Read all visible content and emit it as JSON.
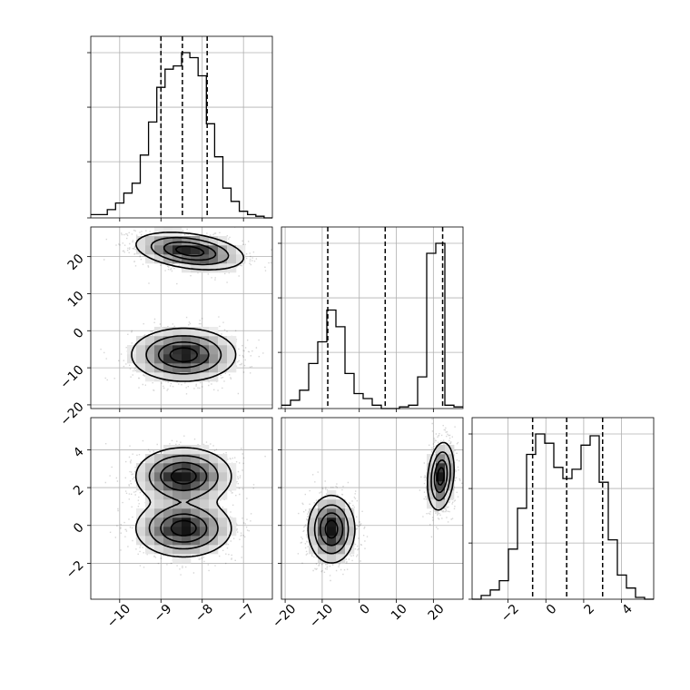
{
  "chart_data": {
    "type": "corner",
    "grid": true,
    "dimensions": [
      {
        "range": [
          -10.7,
          -6.3
        ],
        "ticks": [
          -10,
          -9,
          -8,
          -7
        ],
        "tick_labels": [
          "−10",
          "−9",
          "−8",
          "−7"
        ],
        "quantiles": [
          -9.0,
          -8.48,
          -7.88
        ],
        "hist": {
          "edges": [
            -10.7,
            -10.5,
            -10.3,
            -10.1,
            -9.9,
            -9.7,
            -9.5,
            -9.3,
            -9.1,
            -8.9,
            -8.7,
            -8.5,
            -8.3,
            -8.1,
            -7.9,
            -7.7,
            -7.5,
            -7.3,
            -7.1,
            -6.9,
            -6.7,
            -6.5,
            -6.3
          ],
          "counts": [
            0.02,
            0.02,
            0.05,
            0.09,
            0.15,
            0.21,
            0.38,
            0.58,
            0.79,
            0.9,
            0.92,
            1.0,
            0.97,
            0.86,
            0.57,
            0.37,
            0.18,
            0.1,
            0.04,
            0.02,
            0.01,
            0.0
          ]
        }
      },
      {
        "range": [
          -21,
          28
        ],
        "ticks": [
          -20,
          -10,
          0,
          10,
          20
        ],
        "tick_labels": [
          "−20",
          "−10",
          "0",
          "10",
          "20"
        ],
        "quantiles": [
          -8.5,
          7.0,
          22.5
        ],
        "hist": {
          "edges": [
            -21,
            -18.55,
            -16.1,
            -13.65,
            -11.2,
            -8.75,
            -6.3,
            -3.85,
            -1.4,
            1.05,
            3.5,
            5.95,
            8.4,
            10.85,
            13.3,
            15.75,
            18.2,
            20.65,
            23.1,
            25.55,
            28
          ],
          "counts": [
            0.02,
            0.05,
            0.11,
            0.27,
            0.4,
            0.59,
            0.49,
            0.21,
            0.09,
            0.06,
            0.02,
            0.0,
            0.0,
            0.01,
            0.02,
            0.19,
            0.93,
            0.99,
            0.02,
            0.01
          ]
        }
      },
      {
        "range": [
          -3.9,
          5.7
        ],
        "ticks": [
          -2,
          0,
          2,
          4
        ],
        "tick_labels": [
          "−2",
          "0",
          "2",
          "4"
        ],
        "quantiles": [
          -0.7,
          1.1,
          3.0
        ],
        "hist": {
          "edges": [
            -3.9,
            -3.42,
            -2.94,
            -2.46,
            -1.98,
            -1.5,
            -1.02,
            -0.54,
            -0.06,
            0.42,
            0.9,
            1.38,
            1.86,
            2.34,
            2.82,
            3.3,
            3.78,
            4.26,
            4.74,
            5.22,
            5.7
          ],
          "counts": [
            0.0,
            0.02,
            0.05,
            0.1,
            0.27,
            0.49,
            0.78,
            0.89,
            0.84,
            0.71,
            0.65,
            0.7,
            0.83,
            0.88,
            0.63,
            0.32,
            0.13,
            0.06,
            0.01,
            0.0
          ]
        }
      }
    ],
    "joint": [
      {
        "pair": [
          0,
          1
        ],
        "components": [
          {
            "mean": [
              -8.3,
              21.5
            ],
            "sd": [
              0.62,
              2.4
            ],
            "rho": -0.35,
            "weight": 0.5
          },
          {
            "mean": [
              -8.45,
              -6.5
            ],
            "sd": [
              0.6,
              3.4
            ],
            "rho": 0.0,
            "weight": 0.5
          }
        ]
      },
      {
        "pair": [
          0,
          2
        ],
        "components": [
          {
            "mean": [
              -8.45,
              2.6
            ],
            "sd": [
              0.55,
              0.72
            ],
            "rho": 0.0,
            "weight": 0.5
          },
          {
            "mean": [
              -8.45,
              -0.15
            ],
            "sd": [
              0.55,
              0.72
            ],
            "rho": 0.0,
            "weight": 0.5
          }
        ]
      },
      {
        "pair": [
          1,
          2
        ],
        "components": [
          {
            "mean": [
              22.0,
              2.6
            ],
            "sd": [
              1.7,
              0.85
            ],
            "rho": 0.2,
            "weight": 0.5
          },
          {
            "mean": [
              -7.5,
              -0.2
            ],
            "sd": [
              3.0,
              0.85
            ],
            "rho": 0.0,
            "weight": 0.5
          }
        ]
      }
    ]
  }
}
